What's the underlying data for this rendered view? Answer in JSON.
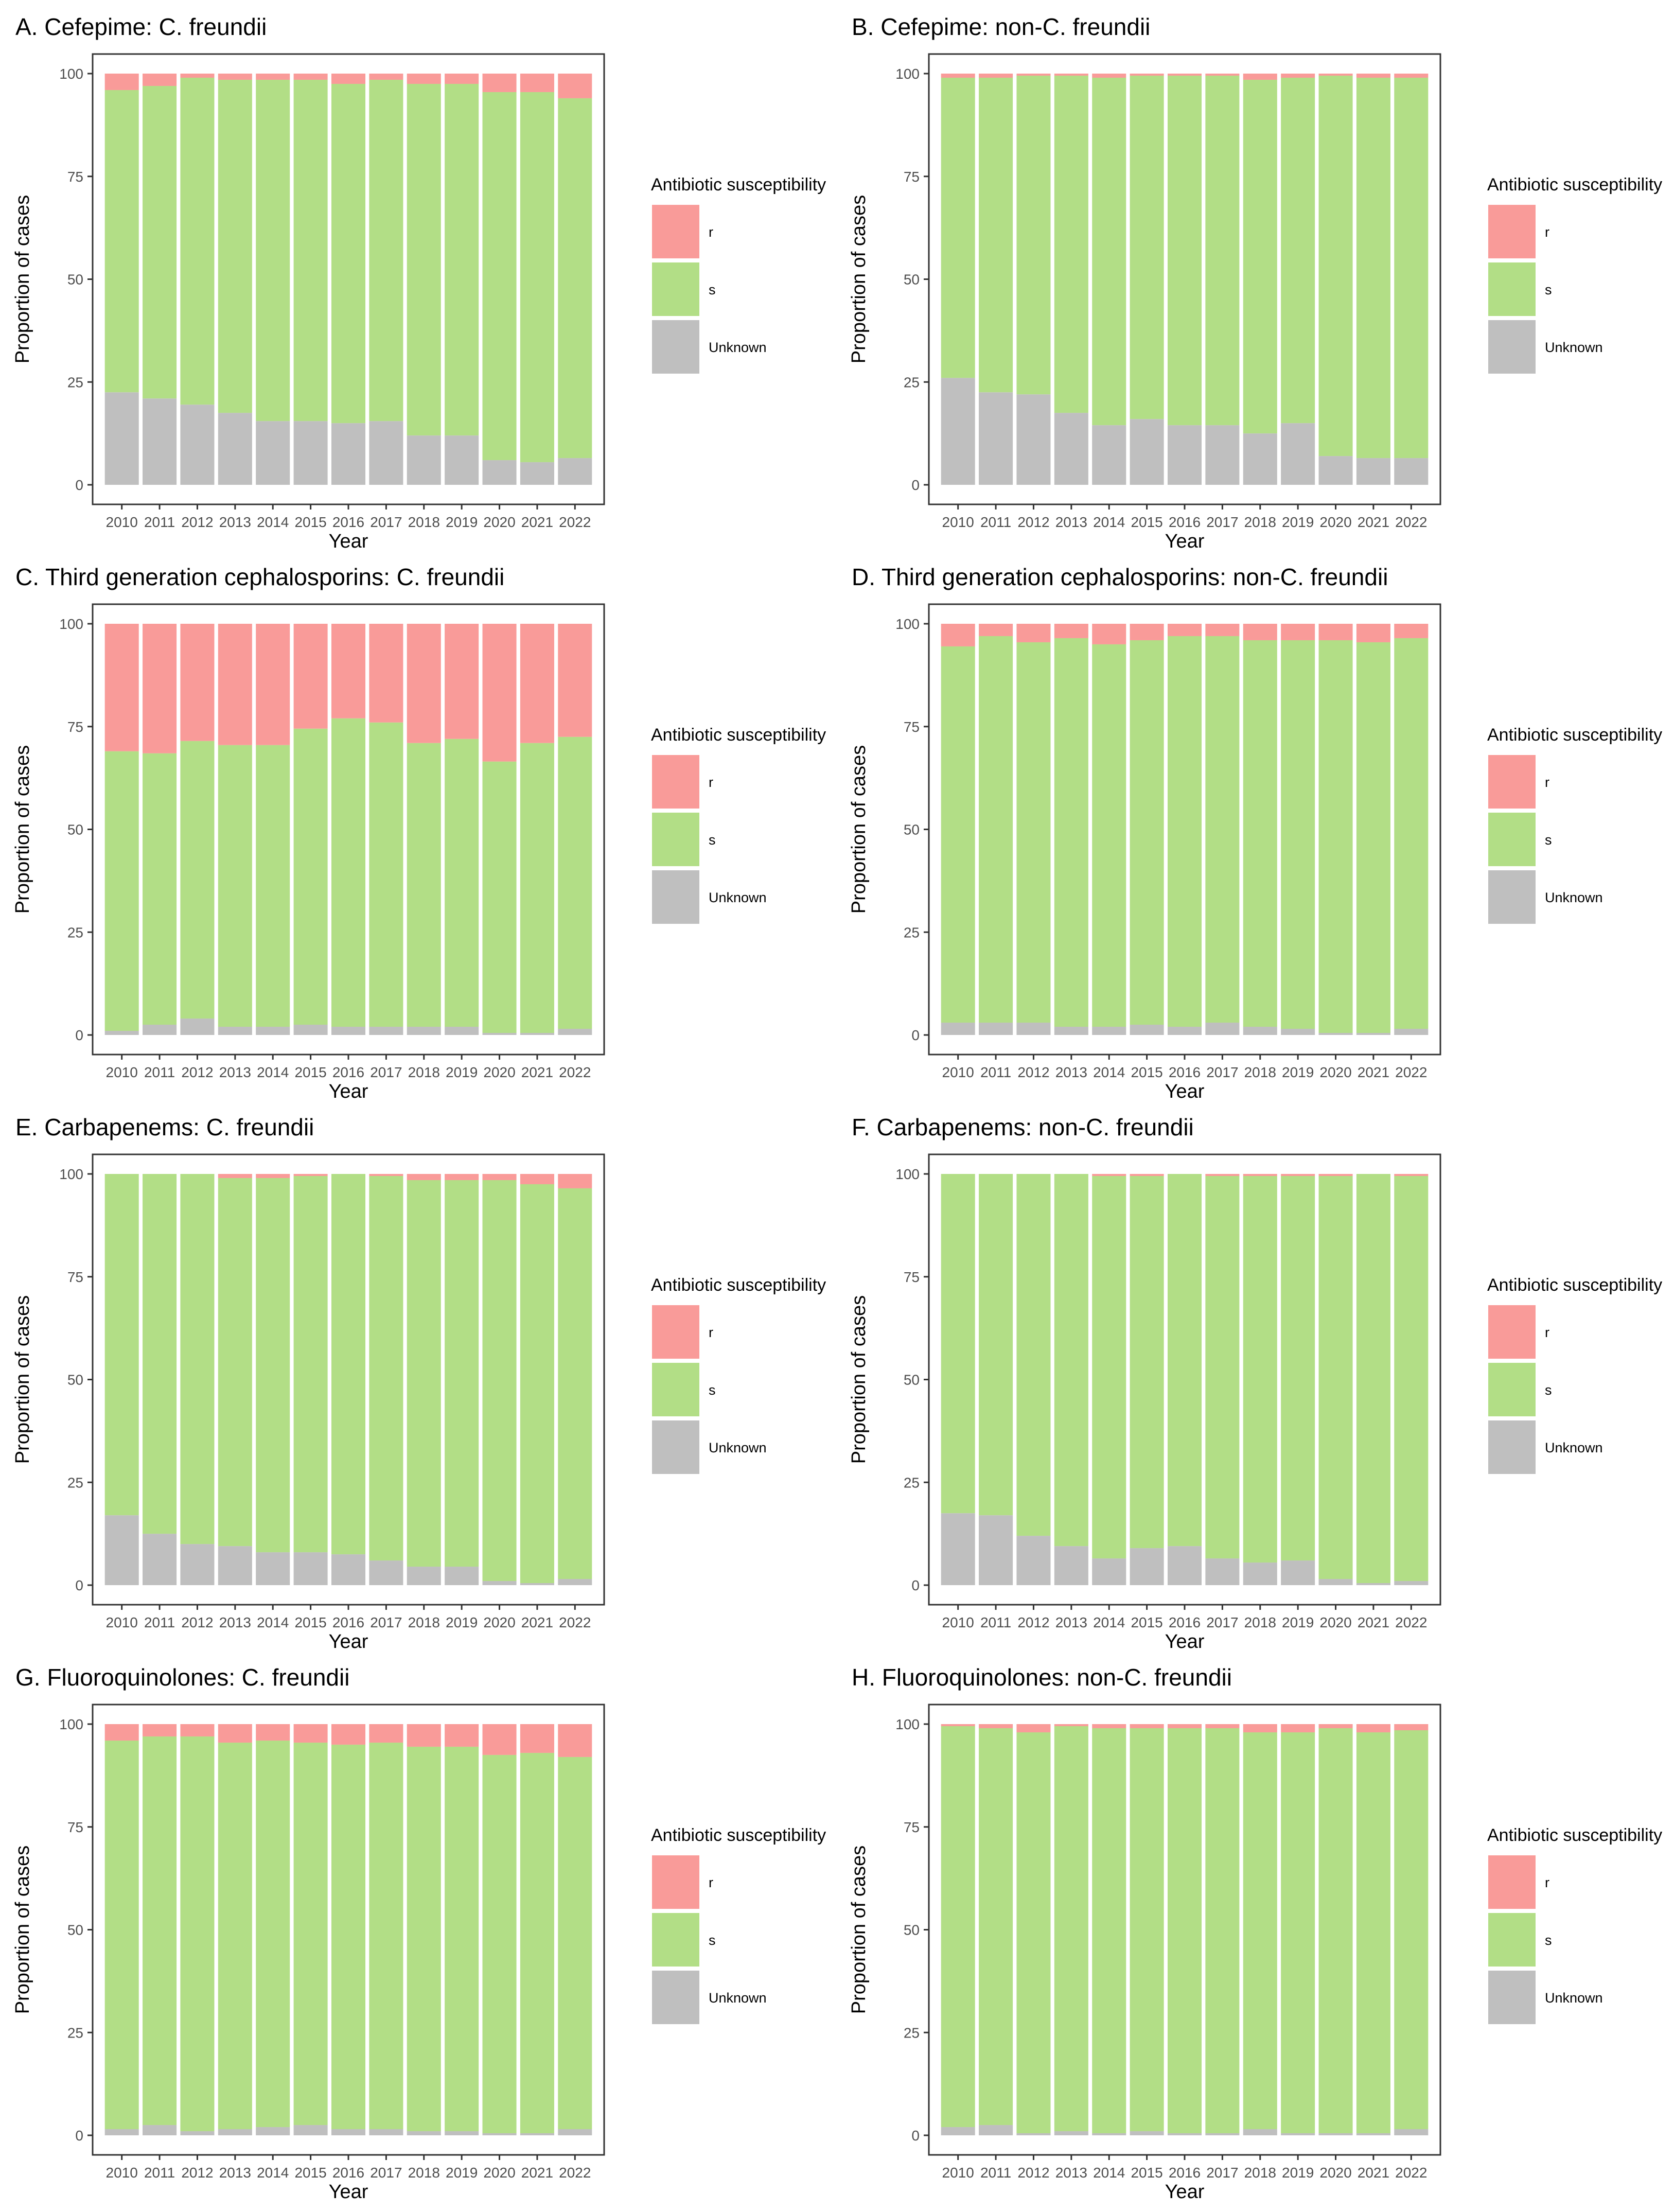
{
  "figure": {
    "legend_title": "Antibiotic susceptibility",
    "x_axis_title": "Year",
    "y_axis_title": "Proportion of cases"
  },
  "colors": {
    "r": "#f99b99",
    "s": "#b2de86",
    "Unknown": "#bfbfbf"
  },
  "chart_data": [
    {
      "type": "bar",
      "stacked": true,
      "title": "A. Cefepime: C. freundii",
      "xlabel": "Year",
      "ylabel": "Proportion of cases",
      "ylim": [
        0,
        100
      ],
      "yticks": [
        0,
        25,
        50,
        75,
        100
      ],
      "categories": [
        "2010",
        "2011",
        "2012",
        "2013",
        "2014",
        "2015",
        "2016",
        "2017",
        "2018",
        "2019",
        "2020",
        "2021",
        "2022"
      ],
      "series": [
        {
          "name": "Unknown",
          "values": [
            22.5,
            21,
            19.5,
            17.5,
            15.5,
            15.5,
            15,
            15.5,
            12,
            12,
            6,
            5.5,
            6.5
          ]
        },
        {
          "name": "s",
          "values": [
            73.5,
            76,
            79.5,
            81,
            83,
            83,
            82.5,
            83,
            85.5,
            85.5,
            89.5,
            90,
            87.5
          ]
        },
        {
          "name": "r",
          "values": [
            4,
            3,
            1,
            1.5,
            1.5,
            1.5,
            2.5,
            1.5,
            2.5,
            2.5,
            4.5,
            4.5,
            6
          ]
        }
      ],
      "legend": [
        "r",
        "s",
        "Unknown"
      ]
    },
    {
      "type": "bar",
      "stacked": true,
      "title": "B. Cefepime: non-C. freundii",
      "xlabel": "Year",
      "ylabel": "Proportion of cases",
      "ylim": [
        0,
        100
      ],
      "yticks": [
        0,
        25,
        50,
        75,
        100
      ],
      "categories": [
        "2010",
        "2011",
        "2012",
        "2013",
        "2014",
        "2015",
        "2016",
        "2017",
        "2018",
        "2019",
        "2020",
        "2021",
        "2022"
      ],
      "series": [
        {
          "name": "Unknown",
          "values": [
            26,
            22.5,
            22,
            17.5,
            14.5,
            16,
            14.5,
            14.5,
            12.5,
            15,
            7,
            6.5,
            6.5
          ]
        },
        {
          "name": "s",
          "values": [
            73,
            76.5,
            77.5,
            82,
            84.5,
            83.5,
            85,
            85,
            86,
            84,
            92.5,
            92.5,
            92.5
          ]
        },
        {
          "name": "r",
          "values": [
            1,
            1,
            0.5,
            0.5,
            1,
            0.5,
            0.5,
            0.5,
            1.5,
            1,
            0.5,
            1,
            1
          ]
        }
      ],
      "legend": [
        "r",
        "s",
        "Unknown"
      ]
    },
    {
      "type": "bar",
      "stacked": true,
      "title": "C. Third generation cephalosporins: C. freundii",
      "xlabel": "Year",
      "ylabel": "Proportion of cases",
      "ylim": [
        0,
        100
      ],
      "yticks": [
        0,
        25,
        50,
        75,
        100
      ],
      "categories": [
        "2010",
        "2011",
        "2012",
        "2013",
        "2014",
        "2015",
        "2016",
        "2017",
        "2018",
        "2019",
        "2020",
        "2021",
        "2022"
      ],
      "series": [
        {
          "name": "Unknown",
          "values": [
            1,
            2.5,
            4,
            2,
            2,
            2.5,
            2,
            2,
            2,
            2,
            0.5,
            0.5,
            1.5
          ]
        },
        {
          "name": "s",
          "values": [
            68,
            66,
            67.5,
            68.5,
            68.5,
            72,
            75,
            74,
            69,
            70,
            66,
            70.5,
            71
          ]
        },
        {
          "name": "r",
          "values": [
            31,
            31.5,
            28.5,
            29.5,
            29.5,
            25.5,
            23,
            24,
            29,
            28,
            33.5,
            29,
            27.5
          ]
        }
      ],
      "legend": [
        "r",
        "s",
        "Unknown"
      ]
    },
    {
      "type": "bar",
      "stacked": true,
      "title": "D. Third generation cephalosporins: non-C. freundii",
      "xlabel": "Year",
      "ylabel": "Proportion of cases",
      "ylim": [
        0,
        100
      ],
      "yticks": [
        0,
        25,
        50,
        75,
        100
      ],
      "categories": [
        "2010",
        "2011",
        "2012",
        "2013",
        "2014",
        "2015",
        "2016",
        "2017",
        "2018",
        "2019",
        "2020",
        "2021",
        "2022"
      ],
      "series": [
        {
          "name": "Unknown",
          "values": [
            3,
            3,
            3,
            2,
            2,
            2.5,
            2,
            3,
            2,
            1.5,
            0.5,
            0.5,
            1.5
          ]
        },
        {
          "name": "s",
          "values": [
            91.5,
            94,
            92.5,
            94.5,
            93,
            93.5,
            95,
            94,
            94,
            94.5,
            95.5,
            95,
            95
          ]
        },
        {
          "name": "r",
          "values": [
            5.5,
            3,
            4.5,
            3.5,
            5,
            4,
            3,
            3,
            4,
            4,
            4,
            4.5,
            3.5
          ]
        }
      ],
      "legend": [
        "r",
        "s",
        "Unknown"
      ]
    },
    {
      "type": "bar",
      "stacked": true,
      "title": "E. Carbapenems: C. freundii",
      "xlabel": "Year",
      "ylabel": "Proportion of cases",
      "ylim": [
        0,
        100
      ],
      "yticks": [
        0,
        25,
        50,
        75,
        100
      ],
      "categories": [
        "2010",
        "2011",
        "2012",
        "2013",
        "2014",
        "2015",
        "2016",
        "2017",
        "2018",
        "2019",
        "2020",
        "2021",
        "2022"
      ],
      "series": [
        {
          "name": "Unknown",
          "values": [
            17,
            12.5,
            10,
            9.5,
            8,
            8,
            7.5,
            6,
            4.5,
            4.5,
            1,
            0.5,
            1.5
          ]
        },
        {
          "name": "s",
          "values": [
            83,
            87.5,
            90,
            89.5,
            91,
            91.5,
            92.5,
            93.5,
            94,
            94,
            97.5,
            97,
            95
          ]
        },
        {
          "name": "r",
          "values": [
            0,
            0,
            0,
            1,
            1,
            0.5,
            0,
            0.5,
            1.5,
            1.5,
            1.5,
            2.5,
            3.5
          ]
        }
      ],
      "legend": [
        "r",
        "s",
        "Unknown"
      ]
    },
    {
      "type": "bar",
      "stacked": true,
      "title": "F. Carbapenems: non-C. freundii",
      "xlabel": "Year",
      "ylabel": "Proportion of cases",
      "ylim": [
        0,
        100
      ],
      "yticks": [
        0,
        25,
        50,
        75,
        100
      ],
      "categories": [
        "2010",
        "2011",
        "2012",
        "2013",
        "2014",
        "2015",
        "2016",
        "2017",
        "2018",
        "2019",
        "2020",
        "2021",
        "2022"
      ],
      "series": [
        {
          "name": "Unknown",
          "values": [
            17.5,
            17,
            12,
            9.5,
            6.5,
            9,
            9.5,
            6.5,
            5.5,
            6,
            1.5,
            0.5,
            1
          ]
        },
        {
          "name": "s",
          "values": [
            82.5,
            83,
            88,
            90.5,
            93,
            90.5,
            90.5,
            93,
            94,
            93.5,
            98,
            99.5,
            98.5
          ]
        },
        {
          "name": "r",
          "values": [
            0,
            0,
            0,
            0,
            0.5,
            0.5,
            0,
            0.5,
            0.5,
            0.5,
            0.5,
            0,
            0.5
          ]
        }
      ],
      "legend": [
        "r",
        "s",
        "Unknown"
      ]
    },
    {
      "type": "bar",
      "stacked": true,
      "title": "G. Fluoroquinolones: C. freundii",
      "xlabel": "Year",
      "ylabel": "Proportion of cases",
      "ylim": [
        0,
        100
      ],
      "yticks": [
        0,
        25,
        50,
        75,
        100
      ],
      "categories": [
        "2010",
        "2011",
        "2012",
        "2013",
        "2014",
        "2015",
        "2016",
        "2017",
        "2018",
        "2019",
        "2020",
        "2021",
        "2022"
      ],
      "series": [
        {
          "name": "Unknown",
          "values": [
            1.5,
            2.5,
            1,
            1.5,
            2,
            2.5,
            1.5,
            1.5,
            1,
            1,
            0.5,
            0.5,
            1.5
          ]
        },
        {
          "name": "s",
          "values": [
            94.5,
            94.5,
            96,
            94,
            94,
            93,
            93.5,
            94,
            93.5,
            93.5,
            92,
            92.5,
            90.5
          ]
        },
        {
          "name": "r",
          "values": [
            4,
            3,
            3,
            4.5,
            4,
            4.5,
            5,
            4.5,
            5.5,
            5.5,
            7.5,
            7,
            8
          ]
        }
      ],
      "legend": [
        "r",
        "s",
        "Unknown"
      ]
    },
    {
      "type": "bar",
      "stacked": true,
      "title": "H. Fluoroquinolones: non-C. freundii",
      "xlabel": "Year",
      "ylabel": "Proportion of cases",
      "ylim": [
        0,
        100
      ],
      "yticks": [
        0,
        25,
        50,
        75,
        100
      ],
      "categories": [
        "2010",
        "2011",
        "2012",
        "2013",
        "2014",
        "2015",
        "2016",
        "2017",
        "2018",
        "2019",
        "2020",
        "2021",
        "2022"
      ],
      "series": [
        {
          "name": "Unknown",
          "values": [
            2,
            2.5,
            0.5,
            1,
            0.5,
            1,
            0.5,
            0.5,
            1.5,
            0.5,
            0.5,
            0.5,
            1.5
          ]
        },
        {
          "name": "s",
          "values": [
            97.5,
            96.5,
            97.5,
            98.5,
            98.5,
            98,
            98.5,
            98.5,
            96.5,
            97.5,
            98.5,
            97.5,
            97
          ]
        },
        {
          "name": "r",
          "values": [
            0.5,
            1,
            2,
            0.5,
            1,
            1,
            1,
            1,
            2,
            2,
            1,
            2,
            1.5
          ]
        }
      ],
      "legend": [
        "r",
        "s",
        "Unknown"
      ]
    }
  ]
}
